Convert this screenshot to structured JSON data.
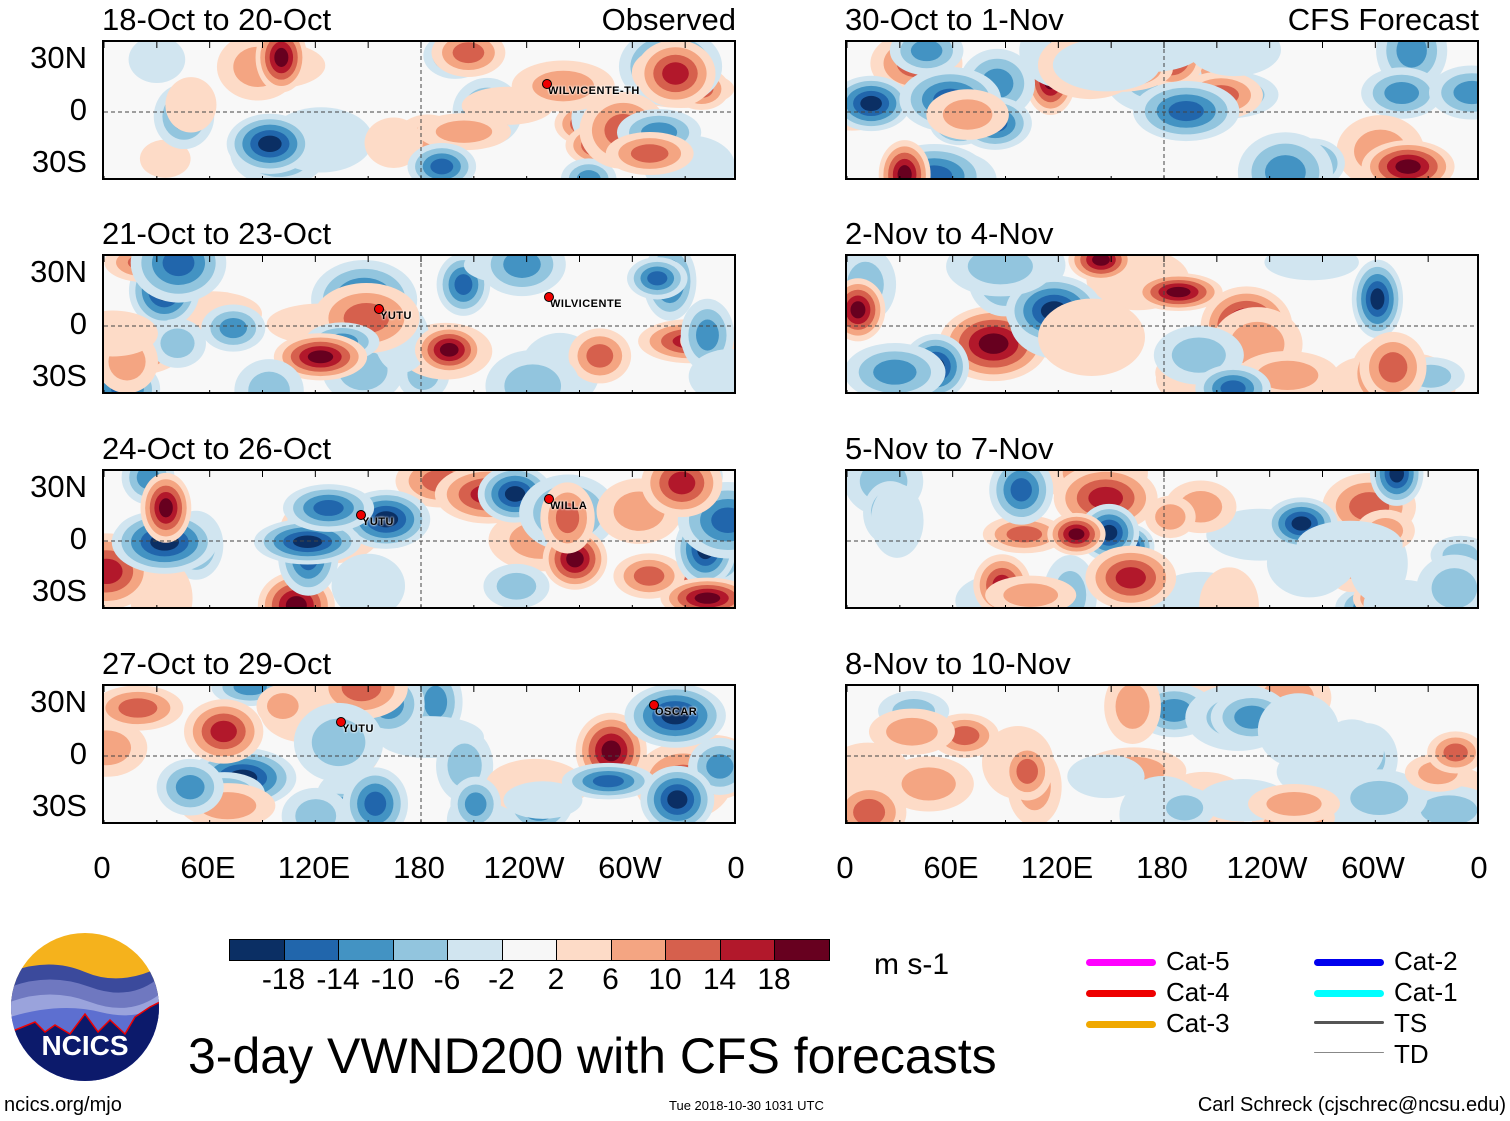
{
  "panels": {
    "left": [
      {
        "title": "18-Oct to 20-Oct",
        "tag": "Observed",
        "storms": [
          "WILVICENTE-TH"
        ]
      },
      {
        "title": "21-Oct to 23-Oct",
        "storms": [
          "YUTU",
          "WILVICENTE"
        ]
      },
      {
        "title": "24-Oct to 26-Oct",
        "storms": [
          "YUTU",
          "WILLA"
        ]
      },
      {
        "title": "27-Oct to 29-Oct",
        "storms": [
          "YUTU",
          "OSCAR"
        ]
      }
    ],
    "right": [
      {
        "title": "30-Oct to 1-Nov",
        "tag": "CFS Forecast"
      },
      {
        "title": "2-Nov to 4-Nov"
      },
      {
        "title": "5-Nov to 7-Nov"
      },
      {
        "title": "8-Nov to 10-Nov"
      }
    ]
  },
  "lat_labels": [
    "30N",
    "0",
    "30S"
  ],
  "lon_labels": [
    "0",
    "60E",
    "120E",
    "180",
    "120W",
    "60W",
    "0"
  ],
  "colorbar": {
    "colors": [
      "#0b2f64",
      "#2166ac",
      "#4393c3",
      "#92c5de",
      "#d1e5f0",
      "#f7f7f7",
      "#fddbc7",
      "#f4a582",
      "#d6604d",
      "#b2182b",
      "#67001f"
    ],
    "labels": [
      "-18",
      "-14",
      "-10",
      "-6",
      "-2",
      "2",
      "6",
      "10",
      "14",
      "18"
    ],
    "units": "m s-1"
  },
  "legend": [
    {
      "label": "Cat-5",
      "color": "#ff00ff"
    },
    {
      "label": "Cat-4",
      "color": "#ee0000"
    },
    {
      "label": "Cat-3",
      "color": "#f0a800"
    },
    {
      "label": "Cat-2",
      "color": "#0000ee"
    },
    {
      "label": "Cat-1",
      "color": "#00ffff"
    },
    {
      "label": "TS",
      "color": "#555555"
    },
    {
      "label": "TD",
      "color": "#888888"
    }
  ],
  "main_title": "3-day VWND200 with CFS forecasts",
  "logo_text": "NCICS",
  "site": "ncics.org/mjo",
  "timestamp": "Tue 2018-10-30 1031 UTC",
  "credit": "Carl Schreck (cjschrec@ncsu.edu)"
}
